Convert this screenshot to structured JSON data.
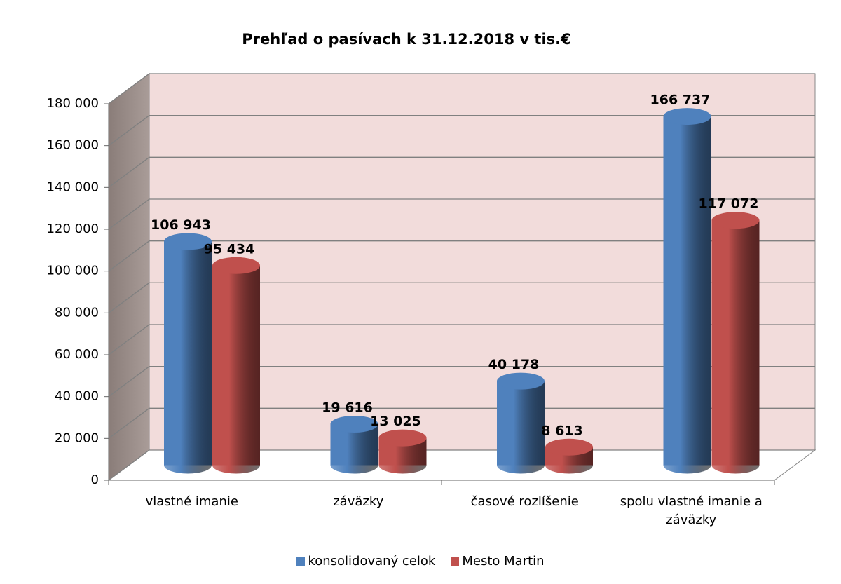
{
  "chart_data": {
    "type": "bar3d",
    "title": "Prehľad o pasívach k 31.12.2018 v tis.€",
    "categories": [
      "vlastné imanie",
      "záväzky",
      "časové rozlíšenie",
      "spolu vlastné imanie a záväzky"
    ],
    "series": [
      {
        "name": "konsolidovaný celok",
        "color": "#4f81bd",
        "values": [
          106943,
          19616,
          40178,
          166737
        ],
        "value_labels": [
          "106 943",
          "19 616",
          "40 178",
          "166 737"
        ]
      },
      {
        "name": "Mesto Martin",
        "color": "#c0504d",
        "values": [
          95434,
          13025,
          8613,
          117072
        ],
        "value_labels": [
          "95 434",
          "13 025",
          "8 613",
          "117 072"
        ]
      }
    ],
    "ylim": [
      0,
      180000
    ],
    "yticks": [
      0,
      {
        "value": 20000,
        "label": "20 000"
      },
      {
        "value": 40000,
        "label": "40 000"
      },
      {
        "value": 60000,
        "label": "60 000"
      },
      {
        "value": 80000,
        "label": "80 000"
      },
      {
        "value": 100000,
        "label": "100 000"
      },
      {
        "value": 120000,
        "label": "120 000"
      },
      {
        "value": 140000,
        "label": "140 000"
      },
      {
        "value": 160000,
        "label": "160 000"
      },
      {
        "value": 180000,
        "label": "180 000"
      }
    ],
    "grid": true,
    "legend": "bottom"
  }
}
